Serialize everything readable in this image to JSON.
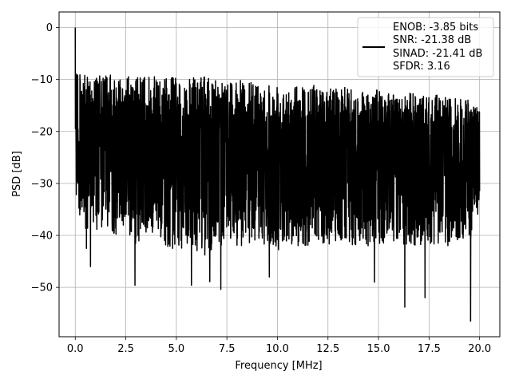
{
  "chart_data": {
    "type": "line",
    "title": "",
    "xlabel": "Frequency [MHz]",
    "ylabel": "PSD [dB]",
    "xlim": [
      -0.8,
      21.0
    ],
    "ylim": [
      -59.5,
      3.0
    ],
    "xticks": [
      0.0,
      2.5,
      5.0,
      7.5,
      10.0,
      12.5,
      15.0,
      17.5,
      20.0
    ],
    "xtick_labels": [
      "0.0",
      "2.5",
      "5.0",
      "7.5",
      "10.0",
      "12.5",
      "15.0",
      "17.5",
      "20.0"
    ],
    "yticks": [
      0,
      -10,
      -20,
      -30,
      -40,
      -50
    ],
    "ytick_labels": [
      "0",
      "−10",
      "−20",
      "−30",
      "−40",
      "−50"
    ],
    "grid": true,
    "legend_position": "top-right",
    "legend_lines": [
      "ENOB: -3.85 bits",
      "SNR: -21.38 dB",
      "SINAD: -21.41 dB",
      "SFDR: 3.16"
    ],
    "line_color": "#000000",
    "series": [
      {
        "x": [
          0.0,
          0.02,
          0.05,
          0.1,
          0.2,
          0.4,
          0.6,
          0.8,
          1.0,
          1.5,
          2.0,
          2.5,
          3.0,
          3.5,
          4.0,
          4.5,
          5.0,
          5.5,
          6.0,
          6.5,
          7.0,
          7.5,
          8.0,
          8.5,
          9.0,
          9.5,
          10.0,
          10.5,
          11.0,
          11.5,
          12.0,
          12.5,
          13.0,
          13.5,
          14.0,
          14.5,
          15.0,
          15.5,
          16.0,
          16.5,
          17.0,
          17.5,
          18.0,
          18.5,
          19.0,
          19.5,
          20.0
        ],
        "upper": [
          0,
          -3,
          -5,
          -7,
          -8,
          -9,
          -9.5,
          -9.5,
          -9.5,
          -9,
          -9.2,
          -9.2,
          -9.5,
          -9.2,
          -9.5,
          -9.5,
          -9.5,
          -10,
          -9.5,
          -9.5,
          -9.5,
          -10,
          -10,
          -10.5,
          -10.5,
          -10.5,
          -10.5,
          -11,
          -11,
          -11,
          -11,
          -11.5,
          -11.5,
          -11.5,
          -12,
          -12,
          -12,
          -12.5,
          -13,
          -12.5,
          -13,
          -13,
          -13,
          -13.5,
          -13.5,
          -14,
          -15
        ],
        "lower": [
          -24,
          -28,
          -34,
          -32,
          -36,
          -38,
          -42,
          -36,
          -40,
          -38,
          -40,
          -39,
          -42,
          -40,
          -40,
          -42,
          -43,
          -42,
          -43,
          -44,
          -42,
          -42,
          -42,
          -42,
          -41,
          -42,
          -43,
          -42,
          -42,
          -42,
          -41,
          -42,
          -41,
          -42,
          -42,
          -42,
          -42,
          -42,
          -42,
          -42,
          -42,
          -42,
          -42,
          -42,
          -41,
          -42,
          -35
        ],
        "spikes": [
          {
            "x": 0.55,
            "y": -42.5
          },
          {
            "x": 0.75,
            "y": -46.0
          },
          {
            "x": 2.95,
            "y": -49.6
          },
          {
            "x": 5.75,
            "y": -49.6
          },
          {
            "x": 6.65,
            "y": -48.9
          },
          {
            "x": 7.2,
            "y": -50.4
          },
          {
            "x": 9.6,
            "y": -48.0
          },
          {
            "x": 14.8,
            "y": -49.0
          },
          {
            "x": 16.3,
            "y": -53.8
          },
          {
            "x": 17.3,
            "y": -52.0
          },
          {
            "x": 19.55,
            "y": -56.5
          }
        ]
      }
    ]
  }
}
